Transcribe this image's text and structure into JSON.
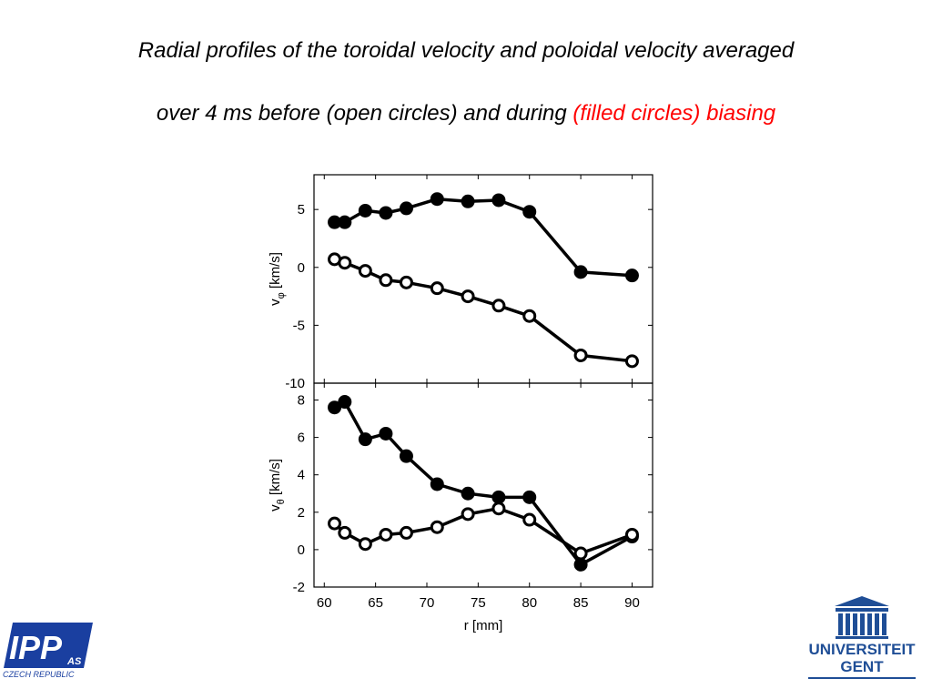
{
  "title": {
    "line1": "Radial profiles of the toroidal velocity  and poloidal velocity  averaged",
    "line2_black": "over 4 ms before (open circles) and during ",
    "line2_red": "(filled circles) biasing",
    "red_color": "#ff0000"
  },
  "logos": {
    "ipp": {
      "text": "IPP",
      "suffix": "AS",
      "country": "CZECH REPUBLIC",
      "color": "#1a3fa0"
    },
    "ugent": {
      "line1": "UNIVERSITEIT",
      "line2": "GENT",
      "color": "#1f4e96"
    }
  },
  "chart_data": [
    {
      "type": "line",
      "ylabel_main": "v",
      "ylabel_sub": "φ",
      "ylabel_unit": "[km/s]",
      "xlabel": "",
      "xlim": [
        59,
        92
      ],
      "ylim": [
        -10,
        8
      ],
      "yticks": [
        -10,
        -5,
        0,
        5
      ],
      "xticks": [
        60,
        65,
        70,
        75,
        80,
        85,
        90
      ],
      "show_xticklabels": false,
      "grid": false,
      "series": [
        {
          "marker": "filled",
          "x": [
            61,
            62,
            64,
            66,
            68,
            71,
            74,
            77,
            80,
            85,
            90
          ],
          "y": [
            3.9,
            3.9,
            4.9,
            4.7,
            5.1,
            5.9,
            5.7,
            5.8,
            4.8,
            -0.4,
            -0.7
          ]
        },
        {
          "marker": "open",
          "x": [
            61,
            62,
            64,
            66,
            68,
            71,
            74,
            77,
            80,
            85,
            90
          ],
          "y": [
            0.7,
            0.4,
            -0.3,
            -1.1,
            -1.3,
            -1.8,
            -2.5,
            -3.3,
            -4.2,
            -7.6,
            -8.1
          ]
        }
      ]
    },
    {
      "type": "line",
      "ylabel_main": "v",
      "ylabel_sub": "θ",
      "ylabel_unit": "[km/s]",
      "xlabel": "r [mm]",
      "xlim": [
        59,
        92
      ],
      "ylim": [
        -2,
        8.9
      ],
      "yticks": [
        -2,
        0,
        2,
        4,
        6,
        8
      ],
      "xticks": [
        60,
        65,
        70,
        75,
        80,
        85,
        90
      ],
      "show_xticklabels": true,
      "grid": false,
      "series": [
        {
          "marker": "filled",
          "x": [
            61,
            62,
            64,
            66,
            68,
            71,
            74,
            77,
            80,
            85,
            90
          ],
          "y": [
            7.6,
            7.9,
            5.9,
            6.2,
            5.0,
            3.5,
            3.0,
            2.8,
            2.8,
            -0.8,
            0.7
          ]
        },
        {
          "marker": "open",
          "x": [
            61,
            62,
            64,
            66,
            68,
            71,
            74,
            77,
            80,
            85,
            90
          ],
          "y": [
            1.4,
            0.9,
            0.3,
            0.8,
            0.9,
            1.2,
            1.9,
            2.2,
            1.6,
            -0.2,
            0.8
          ]
        }
      ]
    }
  ]
}
